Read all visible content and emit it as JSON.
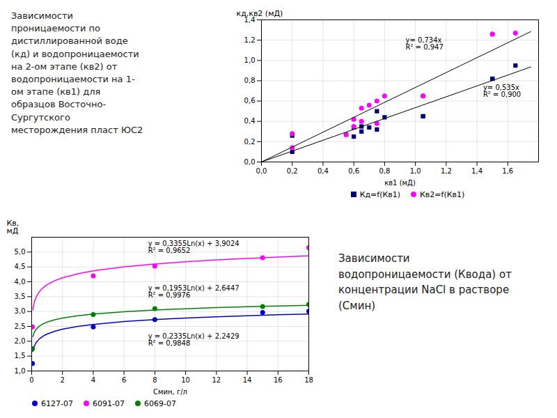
{
  "chart_data": [
    {
      "type": "scatter",
      "title": "Зависимости\nпроницаемости по\nдистиллированной воде\n(кд) и водопроницаемости\nна 2-ом этапе (кв2) от\nводопроницаемости на 1-\nом этапе (кв1) для\nобразцов Восточно-\nСургутского\nместорождения пласт ЮС2",
      "xlabel": "кв1 (мД)",
      "ylabel": "кд,кв2 (мД)",
      "xlim": [
        0.0,
        1.8
      ],
      "ylim": [
        0.0,
        1.4
      ],
      "xticks": [
        {
          "value": 0.0,
          "label": "0,0"
        },
        {
          "value": 0.2,
          "label": "0,2"
        },
        {
          "value": 0.4,
          "label": "0,4"
        },
        {
          "value": 0.6,
          "label": "0,6"
        },
        {
          "value": 0.8,
          "label": "0,8"
        },
        {
          "value": 1.0,
          "label": "1,0"
        },
        {
          "value": 1.2,
          "label": "1,2"
        },
        {
          "value": 1.4,
          "label": "1,4"
        },
        {
          "value": 1.6,
          "label": "1,6"
        }
      ],
      "yticks": [
        {
          "value": 0.0,
          "label": "0,0"
        },
        {
          "value": 0.2,
          "label": "0,2"
        },
        {
          "value": 0.4,
          "label": "0,4"
        },
        {
          "value": 0.6,
          "label": "0,6"
        },
        {
          "value": 0.8,
          "label": "0,8"
        },
        {
          "value": 1.0,
          "label": "1,0"
        },
        {
          "value": 1.2,
          "label": "1,2"
        },
        {
          "value": 1.4,
          "label": "1,4"
        }
      ],
      "grid": true,
      "legend": "lower center",
      "series": [
        {
          "name": "Кд=f(Кв1)",
          "type": "scatter",
          "marker": "square",
          "color": "#000080",
          "x": [
            0.2,
            0.2,
            0.55,
            0.6,
            0.6,
            0.65,
            0.65,
            0.7,
            0.75,
            0.75,
            0.8,
            1.05,
            1.05,
            1.5,
            1.5,
            1.65
          ],
          "values": [
            0.1,
            0.26,
            0.27,
            0.25,
            0.34,
            0.35,
            0.3,
            0.34,
            0.5,
            0.32,
            0.44,
            0.45,
            0.45,
            0.82,
            0.82,
            0.95
          ]
        },
        {
          "name": "Кв2=f(Кв1)",
          "type": "scatter",
          "marker": "circle",
          "color": "#FF00FF",
          "x": [
            0.2,
            0.2,
            0.55,
            0.6,
            0.6,
            0.65,
            0.65,
            0.7,
            0.75,
            0.75,
            0.8,
            1.05,
            1.05,
            1.5,
            1.5,
            1.65
          ],
          "values": [
            0.14,
            0.28,
            0.27,
            0.35,
            0.42,
            0.4,
            0.53,
            0.56,
            0.6,
            0.38,
            0.65,
            0.65,
            0.65,
            1.26,
            1.26,
            1.27
          ]
        },
        {
          "type": "line",
          "line_style": "solid",
          "color": "#000000",
          "x": [
            0.0,
            1.75
          ],
          "values": [
            0.0,
            0.93625
          ],
          "annotation": "y= 0,535x\nR² = 0,900"
        },
        {
          "type": "line",
          "line_style": "solid",
          "color": "#000000",
          "x": [
            0.0,
            1.75
          ],
          "values": [
            0.0,
            1.2845
          ],
          "annotation": "y= 0,734x\nR² = 0,947"
        }
      ]
    },
    {
      "type": "scatter",
      "title": "Зависимости\nводопроницаемости (Квода) от\nконцентрации NaCl в растворе\n(Смин)",
      "xlabel": "Смин, г/л",
      "ylabel": "Кв,\nмД",
      "xlim": [
        0,
        18
      ],
      "ylim": [
        1.0,
        5.5
      ],
      "xticks": [
        0,
        2,
        4,
        6,
        8,
        10,
        12,
        14,
        16,
        18
      ],
      "yticks": [
        {
          "value": 1.0,
          "label": "1,0"
        },
        {
          "value": 1.5,
          "label": "1,5"
        },
        {
          "value": 2.0,
          "label": "2,0"
        },
        {
          "value": 2.5,
          "label": "2,5"
        },
        {
          "value": 3.0,
          "label": "3,0"
        },
        {
          "value": 3.5,
          "label": "3,5"
        },
        {
          "value": 4.0,
          "label": "4,0"
        },
        {
          "value": 4.5,
          "label": "4,5"
        },
        {
          "value": 5.0,
          "label": "5,0"
        }
      ],
      "grid": true,
      "legend": "lower left",
      "series": [
        {
          "name": "6127-07",
          "type": "scatter",
          "marker": "circle",
          "color": "#0000CD",
          "x": [
            0.05,
            4.0,
            8.0,
            15.0,
            18.0
          ],
          "values": [
            1.25,
            2.48,
            2.73,
            2.97,
            3.01
          ]
        },
        {
          "type": "line",
          "line_style": "solid",
          "color": "#0000CD",
          "x": [
            0.08,
            0.1,
            0.15,
            0.2,
            0.3,
            0.5,
            0.75,
            1,
            1.5,
            2,
            3,
            4,
            6,
            8,
            10,
            12,
            14,
            16,
            18
          ],
          "values": [
            1.6531,
            1.7052,
            1.7999,
            1.8671,
            1.9618,
            2.0811,
            2.1757,
            2.2429,
            2.3376,
            2.4047,
            2.4994,
            2.5666,
            2.6613,
            2.7284,
            2.7806,
            2.8231,
            2.8591,
            2.8903,
            2.9178
          ],
          "annotation": "y = 0,2335Ln(x) + 2,2429\nR² = 0,9848"
        },
        {
          "name": "6091-07",
          "type": "scatter",
          "marker": "circle",
          "color": "#FF00FF",
          "x": [
            0.05,
            4.0,
            8.0,
            15.0,
            18.0
          ],
          "values": [
            2.48,
            4.2,
            4.53,
            4.81,
            5.15
          ]
        },
        {
          "type": "line",
          "line_style": "solid",
          "color": "#FF00FF",
          "x": [
            0.08,
            0.1,
            0.15,
            0.2,
            0.3,
            0.5,
            0.75,
            1,
            1.5,
            2,
            3,
            4,
            6,
            8,
            10,
            12,
            14,
            16,
            18
          ],
          "values": [
            3.055,
            3.1299,
            3.2659,
            3.3624,
            3.4985,
            3.6698,
            3.8059,
            3.9024,
            4.0384,
            4.135,
            4.271,
            4.3675,
            4.5035,
            4.6001,
            4.6749,
            4.7361,
            4.7878,
            4.8326,
            4.8721
          ],
          "annotation": "y = 0,3355Ln(x) + 3,9024\nR² = 0,9652"
        },
        {
          "name": "6069-07",
          "type": "scatter",
          "marker": "circle",
          "color": "#008000",
          "x": [
            0.05,
            4.0,
            8.0,
            15.0,
            18.0
          ],
          "values": [
            1.75,
            2.9,
            3.1,
            3.17,
            3.24
          ]
        },
        {
          "type": "line",
          "line_style": "solid",
          "color": "#008000",
          "x": [
            0.08,
            0.1,
            0.15,
            0.2,
            0.3,
            0.5,
            0.75,
            1,
            1.5,
            2,
            3,
            4,
            6,
            8,
            10,
            12,
            14,
            16,
            18
          ],
          "values": [
            2.1514,
            2.195,
            2.2742,
            2.3304,
            2.4096,
            2.5093,
            2.5885,
            2.6447,
            2.7239,
            2.7801,
            2.8593,
            2.9154,
            2.9946,
            3.0508,
            3.0944,
            3.13,
            3.1601,
            3.1862,
            3.2092
          ],
          "annotation": "y = 0,1953Ln(x) + 2,6447\nR² = 0,9976"
        }
      ]
    }
  ]
}
